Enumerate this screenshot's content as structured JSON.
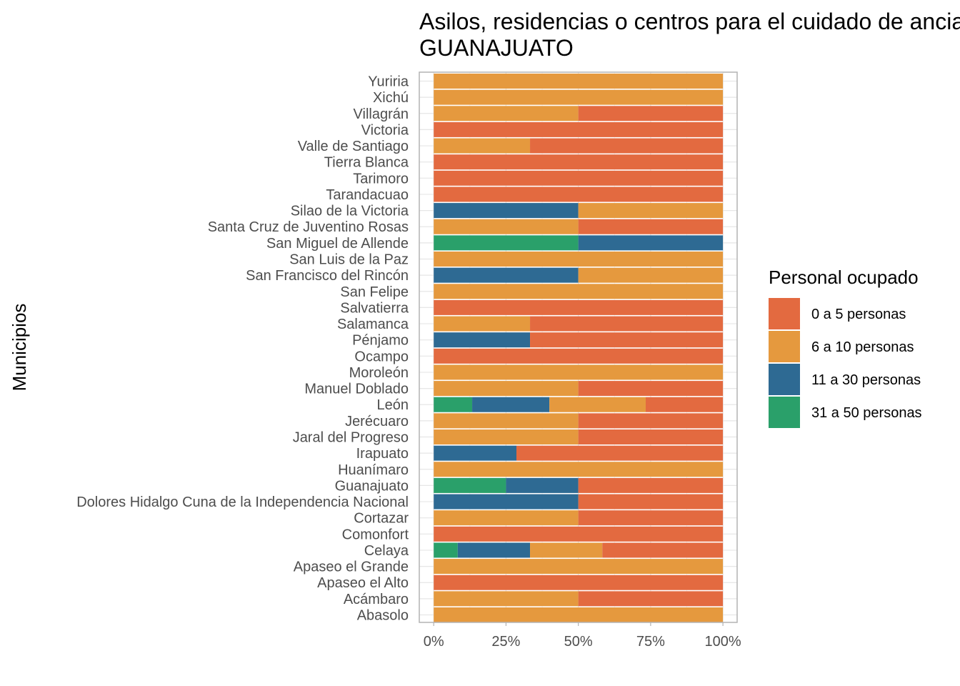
{
  "chart_data": {
    "type": "bar",
    "orientation": "horizontal",
    "stacked": "percent",
    "title_lines": [
      "Asilos, residencias o centros para el cuidado de ancianos",
      "GUANAJUATO"
    ],
    "xlabel": "",
    "ylabel": "Municipios",
    "xlim": [
      0,
      1
    ],
    "x_ticks": [
      0,
      0.25,
      0.5,
      0.75,
      1
    ],
    "x_tick_labels": [
      "0%",
      "25%",
      "50%",
      "75%",
      "100%"
    ],
    "grid": true,
    "legend_position": "right",
    "legend_title": "Personal ocupado",
    "categories": [
      "Yuriria",
      "Xichú",
      "Villagrán",
      "Victoria",
      "Valle de Santiago",
      "Tierra Blanca",
      "Tarimoro",
      "Tarandacuao",
      "Silao de la Victoria",
      "Santa Cruz de Juventino Rosas",
      "San Miguel de Allende",
      "San Luis de la Paz",
      "San Francisco del Rincón",
      "San Felipe",
      "Salvatierra",
      "Salamanca",
      "Pénjamo",
      "Ocampo",
      "Moroleón",
      "Manuel Doblado",
      "León",
      "Jerécuaro",
      "Jaral del Progreso",
      "Irapuato",
      "Huanímaro",
      "Guanajuato",
      "Dolores Hidalgo Cuna de la Independencia Nacional",
      "Cortazar",
      "Comonfort",
      "Celaya",
      "Apaseo el Grande",
      "Apaseo el Alto",
      "Acámbaro",
      "Abasolo"
    ],
    "series": [
      {
        "name": "31 a 50 personas",
        "color": "#2aa06a",
        "values": [
          0,
          0,
          0,
          0,
          0,
          0,
          0,
          0,
          0,
          0,
          0.5,
          0,
          0,
          0,
          0,
          0,
          0,
          0,
          0,
          0,
          0.133,
          0,
          0,
          0,
          0,
          0.25,
          0,
          0,
          0,
          0.083,
          0,
          0,
          0,
          0
        ]
      },
      {
        "name": "11 a 30 personas",
        "color": "#2e6a93",
        "values": [
          0,
          0,
          0,
          0,
          0,
          0,
          0,
          0,
          0.5,
          0,
          0.5,
          0,
          0.5,
          0,
          0,
          0,
          0.333,
          0,
          0,
          0,
          0.267,
          0,
          0,
          0.286,
          0,
          0.25,
          0.5,
          0,
          0,
          0.25,
          0,
          0,
          0,
          0
        ]
      },
      {
        "name": "6 a 10 personas",
        "color": "#e5993e",
        "values": [
          1,
          1,
          0.5,
          0,
          0.333,
          0,
          0,
          0,
          0.5,
          0.5,
          0,
          1,
          0.5,
          1,
          0,
          0.333,
          0,
          0,
          1,
          0.5,
          0.333,
          0.5,
          0.5,
          0,
          1,
          0,
          0,
          0.5,
          0,
          0.25,
          1,
          0,
          0.5,
          1
        ]
      },
      {
        "name": "0 a 5 personas",
        "color": "#e36a40",
        "values": [
          0,
          0,
          0.5,
          1,
          0.667,
          1,
          1,
          1,
          0,
          0.5,
          0,
          0,
          0,
          0,
          1,
          0.667,
          0.667,
          1,
          0,
          0.5,
          0.267,
          0.5,
          0.5,
          0.714,
          0,
          0.5,
          0.5,
          0.5,
          1,
          0.417,
          0,
          1,
          0.5,
          0
        ]
      }
    ],
    "legend_order": [
      "0 a 5 personas",
      "6 a 10 personas",
      "11 a 30 personas",
      "31 a 50 personas"
    ]
  }
}
